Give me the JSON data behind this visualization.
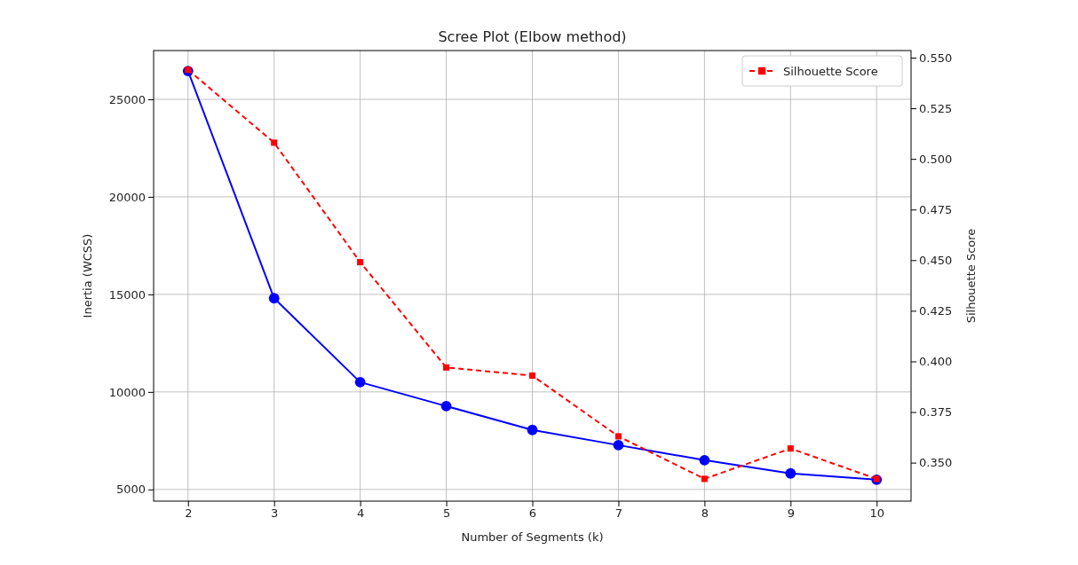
{
  "chart_data": {
    "type": "line",
    "title": "Scree Plot (Elbow method)",
    "xlabel": "Number of Segments (k)",
    "ylabel": "Inertia (WCSS)",
    "y2label": "Silhouette Score",
    "x": [
      2,
      3,
      4,
      5,
      6,
      7,
      8,
      9,
      10
    ],
    "xlim": [
      1.6,
      10.4
    ],
    "xticks": [
      2,
      3,
      4,
      5,
      6,
      7,
      8,
      9,
      10
    ],
    "ylim": [
      4400,
      27500
    ],
    "yticks": [
      5000,
      10000,
      15000,
      20000,
      25000
    ],
    "y2lim": [
      0.331,
      0.5535
    ],
    "y2ticks": [
      {
        "value": 0.35,
        "label": "0.350"
      },
      {
        "value": 0.375,
        "label": "0.375"
      },
      {
        "value": 0.4,
        "label": "0.400"
      },
      {
        "value": 0.425,
        "label": "0.425"
      },
      {
        "value": 0.45,
        "label": "0.450"
      },
      {
        "value": 0.475,
        "label": "0.475"
      },
      {
        "value": 0.5,
        "label": "0.500"
      },
      {
        "value": 0.525,
        "label": "0.525"
      },
      {
        "value": 0.55,
        "label": "0.550"
      }
    ],
    "grid": true,
    "legend": "top right",
    "series": [
      {
        "color": "#0000ff",
        "marker": "circle",
        "line_style": "solid",
        "values": [
          26450,
          14800,
          10500,
          9270,
          8050,
          7270,
          6500,
          5820,
          5500
        ]
      },
      {
        "name": "Silhouette Score",
        "color": "#ff0000",
        "marker": "square",
        "line_style": "dashed",
        "axis": "y2",
        "values": [
          0.544,
          0.508,
          0.449,
          0.397,
          0.393,
          0.363,
          0.342,
          0.357,
          0.342
        ]
      }
    ]
  }
}
